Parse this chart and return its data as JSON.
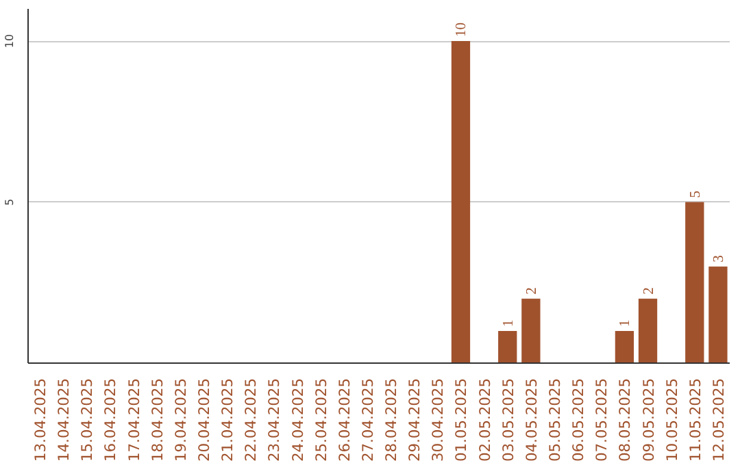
{
  "chart_data": {
    "type": "bar",
    "categories": [
      "13.04.2025",
      "14.04.2025",
      "15.04.2025",
      "16.04.2025",
      "17.04.2025",
      "18.04.2025",
      "19.04.2025",
      "20.04.2025",
      "21.04.2025",
      "22.04.2025",
      "23.04.2025",
      "24.04.2025",
      "25.04.2025",
      "26.04.2025",
      "27.04.2025",
      "28.04.2025",
      "29.04.2025",
      "30.04.2025",
      "01.05.2025",
      "02.05.2025",
      "03.05.2025",
      "04.05.2025",
      "05.05.2025",
      "06.05.2025",
      "07.05.2025",
      "08.05.2025",
      "09.05.2025",
      "10.05.2025",
      "11.05.2025",
      "12.05.2025"
    ],
    "values": [
      0,
      0,
      0,
      0,
      0,
      0,
      0,
      0,
      0,
      0,
      0,
      0,
      0,
      0,
      0,
      0,
      0,
      0,
      10,
      0,
      1,
      2,
      0,
      0,
      0,
      1,
      2,
      0,
      5,
      3
    ],
    "value_labels": [
      null,
      null,
      null,
      null,
      null,
      null,
      null,
      null,
      null,
      null,
      null,
      null,
      null,
      null,
      null,
      null,
      null,
      null,
      "10",
      null,
      "1",
      "2",
      null,
      null,
      null,
      "1",
      "2",
      null,
      "5",
      "3"
    ],
    "color": "#a0522d",
    "ylim": [
      0,
      11
    ],
    "yticks": [
      5,
      10
    ],
    "grid": "y"
  }
}
